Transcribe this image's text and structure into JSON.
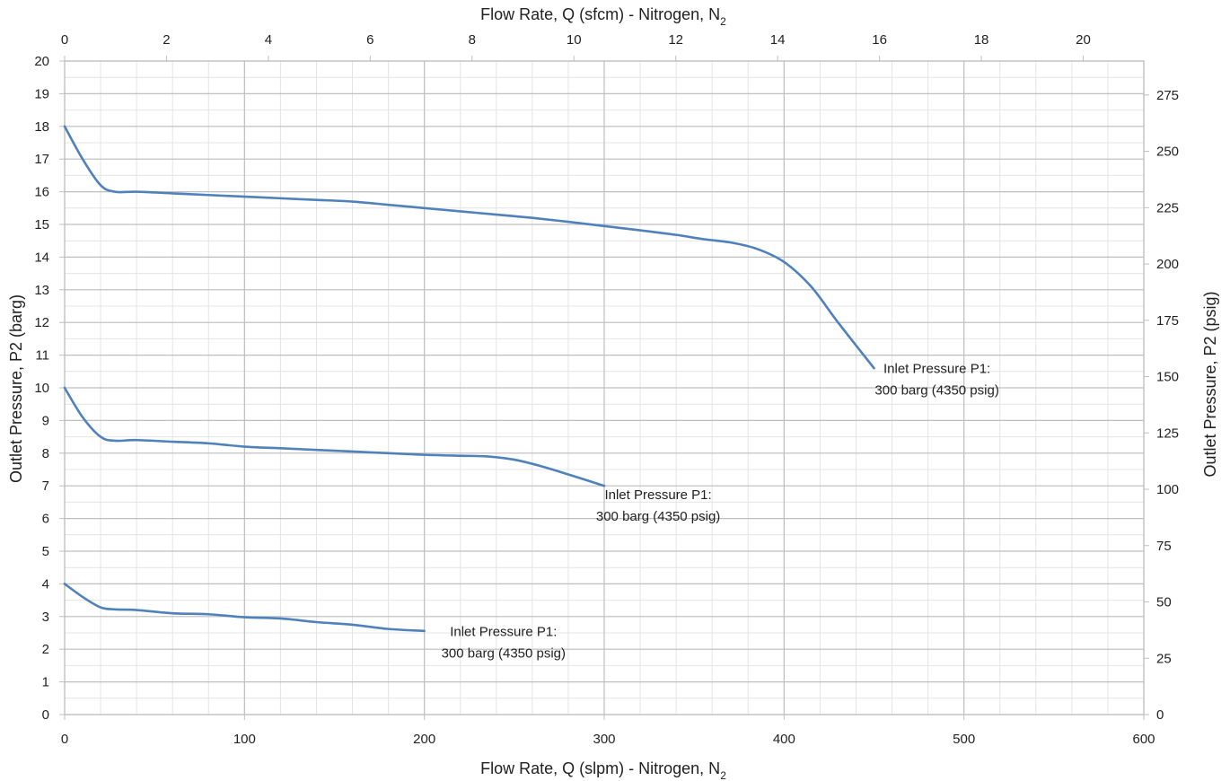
{
  "chart_data": {
    "type": "line",
    "title": "",
    "xlabel_bottom": "Flow Rate, Q (slpm) - Nitrogen, N",
    "xlabel_bottom_sub": "2",
    "xlabel_top": "Flow Rate, Q (sfcm) - Nitrogen, N",
    "xlabel_top_sub": "2",
    "ylabel_left": "Outlet Pressure, P2 (barg)",
    "ylabel_right": "Outlet Pressure, P2 (psig)",
    "xlim": [
      0,
      600
    ],
    "ylim": [
      0,
      20
    ],
    "x2lim": [
      0,
      21.19
    ],
    "y2lim": [
      0,
      290.08
    ],
    "x_ticks": [
      0,
      100,
      200,
      300,
      400,
      500,
      600
    ],
    "y_ticks": [
      0,
      1,
      2,
      3,
      4,
      5,
      6,
      7,
      8,
      9,
      10,
      11,
      12,
      13,
      14,
      15,
      16,
      17,
      18,
      19,
      20
    ],
    "x2_ticks": [
      0,
      2,
      4,
      6,
      8,
      10,
      12,
      14,
      16,
      18,
      20
    ],
    "y2_ticks": [
      0,
      25,
      50,
      75,
      100,
      125,
      150,
      175,
      200,
      225,
      250,
      275
    ],
    "grid": true,
    "line_color": "#4f81bd",
    "series": [
      {
        "x": [
          0,
          10,
          20,
          28,
          40,
          60,
          80,
          100,
          120,
          140,
          160,
          180,
          200,
          220,
          240,
          260,
          280,
          300,
          320,
          340,
          355,
          370,
          385,
          400,
          415,
          430,
          450
        ],
        "y": [
          18.0,
          17.0,
          16.2,
          16.0,
          16.0,
          15.95,
          15.9,
          15.85,
          15.8,
          15.75,
          15.7,
          15.6,
          15.5,
          15.4,
          15.3,
          15.2,
          15.08,
          14.95,
          14.82,
          14.68,
          14.55,
          14.45,
          14.25,
          13.85,
          13.1,
          12.0,
          10.6
        ]
      },
      {
        "x": [
          0,
          10,
          20,
          28,
          40,
          60,
          80,
          100,
          120,
          140,
          160,
          180,
          200,
          220,
          235,
          250,
          265,
          280,
          300
        ],
        "y": [
          10.0,
          9.1,
          8.5,
          8.38,
          8.4,
          8.35,
          8.3,
          8.2,
          8.15,
          8.1,
          8.05,
          8.0,
          7.95,
          7.92,
          7.9,
          7.8,
          7.6,
          7.35,
          7.0
        ]
      },
      {
        "x": [
          0,
          10,
          20,
          28,
          40,
          60,
          80,
          100,
          120,
          140,
          160,
          180,
          200
        ],
        "y": [
          4.0,
          3.6,
          3.28,
          3.22,
          3.2,
          3.1,
          3.07,
          2.98,
          2.94,
          2.83,
          2.75,
          2.62,
          2.56
        ]
      }
    ],
    "annotations": [
      {
        "line1": "Inlet Pressure P1:",
        "line2": "300 barg (4350 psig)",
        "x": 485,
        "y": 10.45
      },
      {
        "line1": "Inlet Pressure P1:",
        "line2": "300 barg (4350 psig)",
        "x": 330,
        "y": 6.6
      },
      {
        "line1": "Inlet Pressure P1:",
        "line2": "300 barg (4350 psig)",
        "x": 244,
        "y": 2.4
      }
    ]
  }
}
